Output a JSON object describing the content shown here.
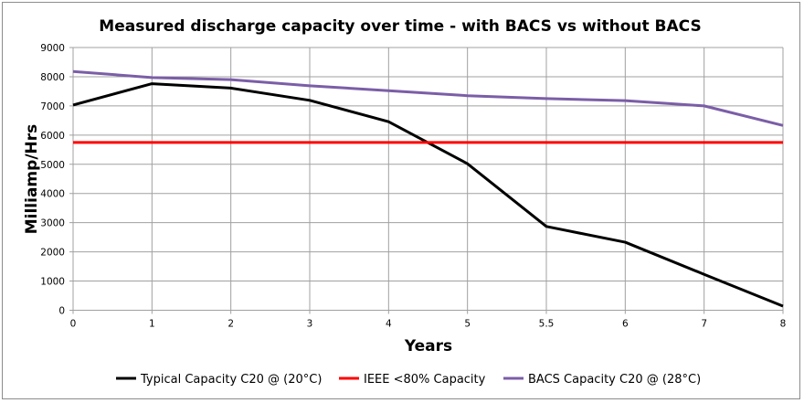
{
  "chart_data": {
    "type": "line",
    "title": "Measured discharge capacity over time - with BACS vs without BACS",
    "xlabel": "Years",
    "ylabel": "Milliamp/Hrs",
    "categories": [
      "0",
      "1",
      "2",
      "3",
      "4",
      "5",
      "5.5",
      "6",
      "7",
      "8"
    ],
    "ylim": [
      0,
      9000
    ],
    "yticks": [
      0,
      1000,
      2000,
      3000,
      4000,
      5000,
      6000,
      7000,
      8000,
      9000
    ],
    "grid": true,
    "legend_position": "bottom",
    "series": [
      {
        "name": "Typical Capacity C20 @ (20°C)",
        "color": "#000000",
        "values": [
          7030,
          7760,
          7610,
          7190,
          6460,
          5020,
          2870,
          2330,
          1230,
          140
        ]
      },
      {
        "name": "IEEE <80% Capacity",
        "color": "#ff0000",
        "values": [
          5750,
          5750,
          5750,
          5750,
          5750,
          5750,
          5750,
          5750,
          5750,
          5750
        ]
      },
      {
        "name": "BACS Capacity C20 @ (28°C)",
        "color": "#7b5ea7",
        "values": [
          8180,
          7970,
          7900,
          7690,
          7520,
          7350,
          7250,
          7180,
          7000,
          6330
        ]
      }
    ]
  }
}
